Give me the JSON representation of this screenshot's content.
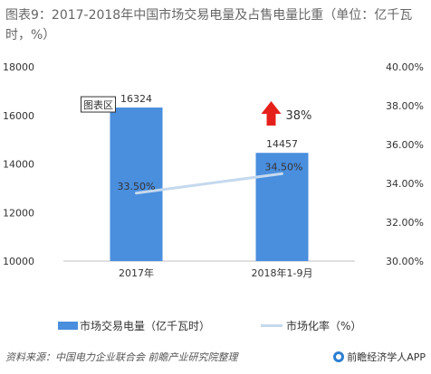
{
  "title": "图表9：2017-2018年中国市场交易电量及占售电量比重（单位：亿千瓦时，%）",
  "legend": {
    "bar": "市场交易电量（亿千瓦时）",
    "line": "市场化率（%）"
  },
  "badge": "图表区",
  "annotation": "38%",
  "footer": {
    "source": "资料来源：中国电力企业联合会  前瞻产业研究院整理",
    "logo": "前瞻经济学人APP"
  },
  "colors": {
    "bar": "#4a8ede",
    "line": "#c5d9ee",
    "arrow": "#e5201b"
  },
  "chart_data": {
    "type": "bar",
    "title": "图表9：2017-2018年中国市场交易电量及占售电量比重（单位：亿千瓦时，%）",
    "categories": [
      "2017年",
      "2018年1-9月"
    ],
    "series": [
      {
        "name": "市场交易电量（亿千瓦时）",
        "type": "bar",
        "axis": "left",
        "values": [
          16324,
          14457
        ]
      },
      {
        "name": "市场化率（%）",
        "type": "line",
        "axis": "right",
        "values": [
          33.5,
          34.5
        ]
      }
    ],
    "data_labels_bar": [
      "16324",
      "14457"
    ],
    "data_labels_line": [
      "33.50%",
      "34.50%"
    ],
    "y_left": {
      "ylim": [
        10000,
        18000
      ],
      "ticks": [
        "10000",
        "12000",
        "14000",
        "16000",
        "18000"
      ]
    },
    "y_right": {
      "ylim": [
        30,
        40
      ],
      "ticks": [
        "30.00%",
        "32.00%",
        "34.00%",
        "36.00%",
        "38.00%",
        "40.00%"
      ]
    },
    "annotation": {
      "text": "38%",
      "icon": "up-arrow-icon"
    },
    "grid": false,
    "legend_position": "bottom"
  }
}
